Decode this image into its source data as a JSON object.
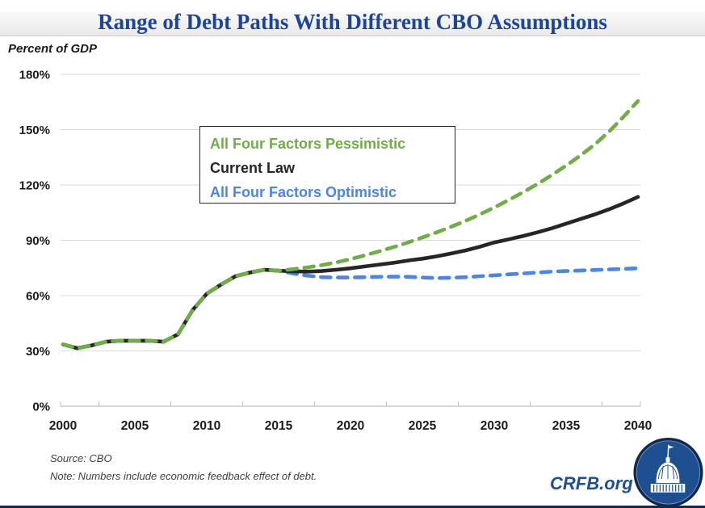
{
  "title": "Range of Debt Paths With Different CBO Assumptions",
  "unit_label": "Percent of GDP",
  "legend": [
    {
      "label": "All Four Factors Pessimistic",
      "color": "#6fad46"
    },
    {
      "label": "Current Law",
      "color": "#262626"
    },
    {
      "label": "All Four Factors Optimistic",
      "color": "#4a86e8"
    }
  ],
  "source": "Source: CBO",
  "note": "Note: Numbers include economic feedback effect of debt.",
  "branding": {
    "site": "CRFB.org",
    "logo_icon": "capitol-dome-logo"
  },
  "colors": {
    "title_blue": "#1c449b",
    "pessimistic_green": "#6fad46",
    "current_law_black": "#262626",
    "optimistic_blue": "#4a86e8",
    "gridline": "#d9d9d9",
    "axis": "#bfbfbf",
    "brand_navy": "#0e2a52",
    "brand_blue": "#1d4f91"
  },
  "chart_data": {
    "type": "line",
    "title": "Range of Debt Paths With Different CBO Assumptions",
    "xlabel": "",
    "ylabel": "Percent of GDP",
    "ylim": [
      0,
      180
    ],
    "ytick_step": 30,
    "ytick_labels": [
      "0%",
      "30%",
      "60%",
      "90%",
      "120%",
      "150%",
      "180%"
    ],
    "xtick_labels": [
      "2000",
      "2005",
      "2010",
      "2015",
      "2020",
      "2025",
      "2030",
      "2035",
      "2040"
    ],
    "grid": "horizontal",
    "legend_position": "upper-left-inside",
    "x": [
      2000,
      2001,
      2002,
      2003,
      2004,
      2005,
      2006,
      2007,
      2008,
      2009,
      2010,
      2011,
      2012,
      2013,
      2014,
      2015,
      2016,
      2017,
      2018,
      2019,
      2020,
      2021,
      2022,
      2023,
      2024,
      2025,
      2026,
      2027,
      2028,
      2029,
      2030,
      2031,
      2032,
      2033,
      2034,
      2035,
      2036,
      2037,
      2038,
      2039,
      2040
    ],
    "series": [
      {
        "name": "All Four Factors Pessimistic",
        "style": "dashed",
        "color": "#6fad46",
        "values": [
          33.5,
          31.5,
          33,
          35,
          35.5,
          35.5,
          35.5,
          35,
          39,
          52,
          61,
          66,
          70.5,
          72.5,
          74,
          73.5,
          74.3,
          75.3,
          76.5,
          78.0,
          79.8,
          81.8,
          84.0,
          86.3,
          88.8,
          91.5,
          94.3,
          97.3,
          100.5,
          104.0,
          107.8,
          111.8,
          116.0,
          120.5,
          125.3,
          130.5,
          136.0,
          142.0,
          149.0,
          157.0,
          165.5
        ]
      },
      {
        "name": "Current Law",
        "style": "solid",
        "color": "#262626",
        "values": [
          33.5,
          31.5,
          33,
          35,
          35.5,
          35.5,
          35.5,
          35,
          39,
          52,
          61,
          66,
          70.5,
          72.5,
          74,
          73.5,
          73.2,
          73.0,
          73.3,
          74.0,
          74.8,
          75.8,
          76.8,
          77.8,
          79.0,
          80.0,
          81.3,
          82.8,
          84.5,
          86.5,
          88.8,
          90.5,
          92.3,
          94.3,
          96.5,
          99.0,
          101.5,
          104.0,
          106.8,
          110.0,
          113.5
        ]
      },
      {
        "name": "All Four Factors Optimistic",
        "style": "dashed",
        "color": "#4a86e8",
        "values": [
          33.5,
          31.5,
          33,
          35,
          35.5,
          35.5,
          35.5,
          35,
          39,
          52,
          61,
          66,
          70.5,
          72.5,
          74,
          73.5,
          72.0,
          70.8,
          70.0,
          69.8,
          69.8,
          70.0,
          70.2,
          70.3,
          70.2,
          69.8,
          69.5,
          69.7,
          70.0,
          70.5,
          71.0,
          71.5,
          72.0,
          72.5,
          73.0,
          73.3,
          73.6,
          73.9,
          74.2,
          74.5,
          74.8
        ]
      }
    ]
  }
}
